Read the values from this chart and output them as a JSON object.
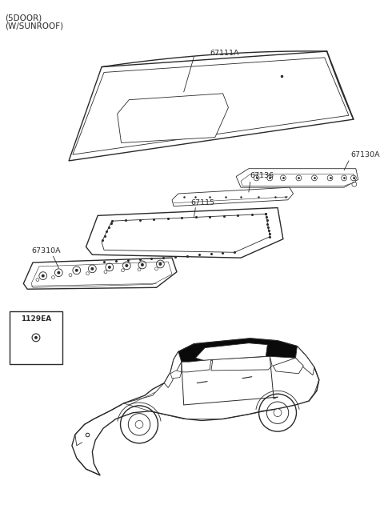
{
  "title_line1": "(5DOOR)",
  "title_line2": "(W/SUNROOF)",
  "bg_color": "#ffffff",
  "line_color": "#2a2a2a",
  "label_67111A": "67111A",
  "label_67130A": "67130A",
  "label_67136": "67136",
  "label_67115": "67115",
  "label_67310A": "67310A",
  "label_1129EA": "1129EA",
  "font_size_title": 7.5,
  "font_size_label": 6.8,
  "font_size_box": 6.5
}
